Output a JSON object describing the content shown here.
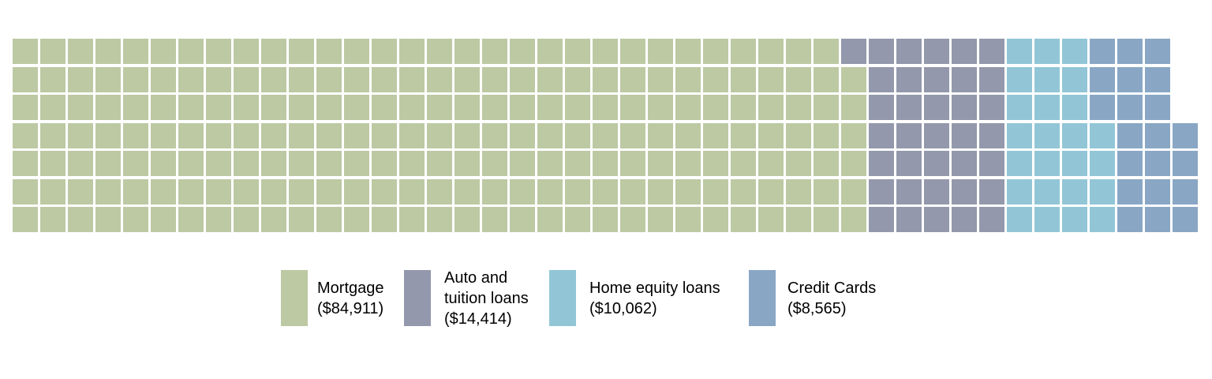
{
  "chart_data": {
    "type": "waffle",
    "shape": "square",
    "rows": 7,
    "columns": 43,
    "total_cells": 298,
    "fill_order": "column-major, bottom-to-top, left-to-right",
    "background": "#ffffff",
    "gap_color": "#ffffff",
    "legend_position": "bottom",
    "series": [
      {
        "id": "mortgage",
        "name": "Mortgage",
        "amount": 84911,
        "amount_label": "($84,911)",
        "cells": 216,
        "color": "#bcc9a3"
      },
      {
        "id": "auto-tuition",
        "name": "Auto and tuition loans",
        "amount": 14414,
        "amount_label": "($14,414)",
        "cells": 36,
        "color": "#9398ac"
      },
      {
        "id": "home-equity",
        "name": "Home equity loans",
        "amount": 10062,
        "amount_label": "($10,062)",
        "cells": 25,
        "color": "#92c6d6"
      },
      {
        "id": "credit-cards",
        "name": "Credit Cards",
        "amount": 8565,
        "amount_label": "($8,565)",
        "cells": 21,
        "color": "#89a7c4"
      }
    ],
    "legend": [
      {
        "lines": [
          "Mortgage",
          "($84,911)"
        ]
      },
      {
        "lines": [
          "Auto and",
          "tuition loans",
          "($14,414)"
        ]
      },
      {
        "lines": [
          "Home equity loans",
          "($10,062)"
        ]
      },
      {
        "lines": [
          "Credit Cards",
          "($8,565)"
        ]
      }
    ]
  }
}
